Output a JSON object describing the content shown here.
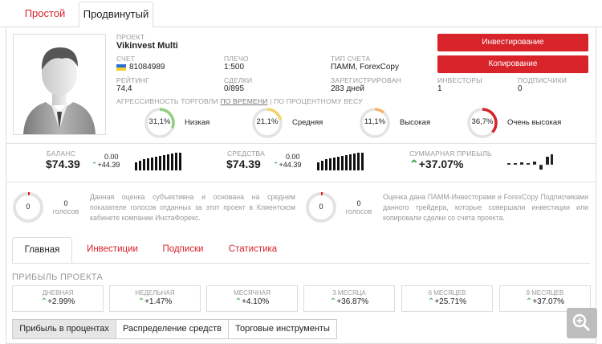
{
  "top_tabs": [
    {
      "label": "Простой"
    },
    {
      "label": "Продвинутый"
    }
  ],
  "project": {
    "label": "ПРОЕКТ",
    "name": "Vikinvest Multi",
    "account_label": "СЧЕТ",
    "account": "81084989",
    "leverage_label": "ПЛЕЧО",
    "leverage": "1:500",
    "account_type_label": "ТИП СЧЕТА",
    "account_type": "ПАММ, ForexCopy",
    "rating_label": "РЕЙТИНГ",
    "rating": "74,4",
    "deals_label": "СДЕЛКИ",
    "deals": "0/895",
    "registered_label": "ЗАРЕГИСТРИРОВАН",
    "registered": "283 дней",
    "investors_label": "ИНВЕСТОРЫ",
    "investors": "1",
    "subscribers_label": "ПОДПИСЧИКИ",
    "subscribers": "0"
  },
  "buttons": {
    "invest": "Инвестирование",
    "copy": "Копирование"
  },
  "aggressiveness": {
    "prefix": "АГРЕССИВНОСТЬ ТОРГОВЛИ",
    "by_time": "ПО ВРЕМЕНИ",
    "divider": "|",
    "by_percent": "ПО ПРОЦЕНТНОМУ ВЕСУ",
    "items": [
      {
        "value": "31,1%",
        "label": "Низкая",
        "fraction": 0.311,
        "color": "#8fd17f"
      },
      {
        "value": "21,1%",
        "label": "Средняя",
        "fraction": 0.211,
        "color": "#f3d36b"
      },
      {
        "value": "11,1%",
        "label": "Высокая",
        "fraction": 0.111,
        "color": "#f2b46e"
      },
      {
        "value": "36,7%",
        "label": "Очень высокая",
        "fraction": 0.367,
        "color": "#d8232a"
      }
    ]
  },
  "stats": {
    "balance_label": "БАЛАНС",
    "balance": "$74.39",
    "balance_delta_top": "0.00",
    "balance_delta": "+44.39",
    "funds_label": "СРЕДСТВА",
    "funds": "$74.39",
    "funds_delta_top": "0.00",
    "funds_delta": "+44.39",
    "profit_label": "СУММАРНАЯ ПРИБЫЛЬ",
    "profit": "+37.07%"
  },
  "votes": [
    {
      "count": "0",
      "votes_value": "0",
      "votes_label": "голосов",
      "text": "Данная оценка субъективна и основана на среднем показателе голосов отданных за этот проект в Клиентском кабинете компании ИнстаФорекс."
    },
    {
      "count": "0",
      "votes_value": "0",
      "votes_label": "голосов",
      "text": "Оценка дана ПАММ-Инвесторами и ForexCopy Подписчиками данного трейдера, которые совершали инвестиции или копировали сделки со счета проекта."
    }
  ],
  "nav_tabs": [
    {
      "label": "Главная"
    },
    {
      "label": "Инвестиции"
    },
    {
      "label": "Подписки"
    },
    {
      "label": "Статистика"
    }
  ],
  "profit_section": {
    "title": "ПРИБЫЛЬ ПРОЕКТА",
    "cards": [
      {
        "label": "ДНЕВНАЯ",
        "value": "+2.99%"
      },
      {
        "label": "НЕДЕЛЬНАЯ",
        "value": "+1.47%"
      },
      {
        "label": "МЕСЯЧНАЯ",
        "value": "+4.10%"
      },
      {
        "label": "3 МЕСЯЦА",
        "value": "+36.87%"
      },
      {
        "label": "6 МЕСЯЦЕВ",
        "value": "+25.71%"
      },
      {
        "label": "9 МЕСЯЦЕВ",
        "value": "+37.07%"
      }
    ]
  },
  "bottom_tabs": [
    {
      "label": "Прибыль в процентах"
    },
    {
      "label": "Распределение средств"
    },
    {
      "label": "Торговые инструменты"
    }
  ],
  "icons": {
    "flag": "ukraine-flag-icon",
    "avatar": "user-avatar-icon",
    "trend": "trend-up-icon",
    "zoom": "zoom-icon"
  }
}
